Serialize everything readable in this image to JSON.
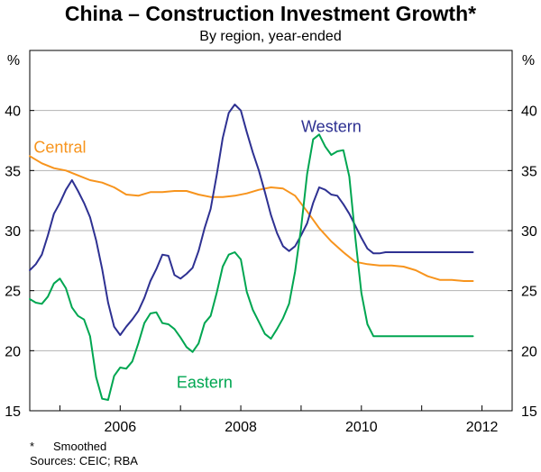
{
  "title": "China – Construction Investment Growth*",
  "subtitle": "By region, year-ended",
  "footnote": {
    "marker": "*",
    "text": "Smoothed"
  },
  "sources": "Sources: CEIC; RBA",
  "colors": {
    "Central": "#f7941d",
    "Western": "#2e3192",
    "Eastern": "#00a651",
    "axis": "#000000",
    "grid": "#b3b3b3"
  },
  "chart_data": {
    "type": "line",
    "title": "China – Construction Investment Growth*",
    "subtitle": "By region, year-ended",
    "ylabel": "%",
    "ylabel_right": "%",
    "xlim": [
      2004.5,
      2012.5
    ],
    "ylim": [
      15,
      45
    ],
    "yticks": [
      15,
      20,
      25,
      30,
      35,
      40
    ],
    "ytick_labels": [
      "15",
      "20",
      "25",
      "30",
      "35",
      "40"
    ],
    "ytick_labels_right": [
      "15",
      "20",
      "25",
      "30",
      "35",
      "40"
    ],
    "xtick_labels": [
      "2006",
      "2008",
      "2010",
      "2012"
    ],
    "xtick_label_positions": [
      2006,
      2008,
      2010,
      2012
    ],
    "year_boundaries": [
      2005,
      2006,
      2007,
      2008,
      2009,
      2010,
      2011,
      2012
    ],
    "series": [
      {
        "name": "Central",
        "label_text": "Central",
        "x": [
          2004.5,
          2004.7,
          2004.9,
          2005.1,
          2005.3,
          2005.5,
          2005.7,
          2005.9,
          2006.1,
          2006.3,
          2006.5,
          2006.7,
          2006.9,
          2007.1,
          2007.3,
          2007.5,
          2007.7,
          2007.9,
          2008.1,
          2008.3,
          2008.5,
          2008.7,
          2008.9,
          2009.1,
          2009.3,
          2009.5,
          2009.7,
          2009.9,
          2010.1,
          2010.3,
          2010.5,
          2010.7,
          2010.9,
          2011.1,
          2011.3,
          2011.5,
          2011.7,
          2011.85
        ],
        "values": [
          36.2,
          35.6,
          35.2,
          35.0,
          34.6,
          34.2,
          34.0,
          33.6,
          33.0,
          32.9,
          33.2,
          33.2,
          33.3,
          33.3,
          33.0,
          32.8,
          32.8,
          32.9,
          33.1,
          33.4,
          33.6,
          33.5,
          32.9,
          31.6,
          30.2,
          29.1,
          28.2,
          27.4,
          27.2,
          27.1,
          27.1,
          27.0,
          26.7,
          26.2,
          25.9,
          25.9,
          25.8,
          25.8
        ]
      },
      {
        "name": "Western",
        "label_text": "Western",
        "x": [
          2004.5,
          2004.6,
          2004.7,
          2004.8,
          2004.9,
          2005.0,
          2005.1,
          2005.2,
          2005.3,
          2005.4,
          2005.5,
          2005.6,
          2005.7,
          2005.8,
          2005.9,
          2006.0,
          2006.1,
          2006.2,
          2006.3,
          2006.4,
          2006.5,
          2006.6,
          2006.7,
          2006.8,
          2006.9,
          2007.0,
          2007.1,
          2007.2,
          2007.3,
          2007.4,
          2007.5,
          2007.6,
          2007.7,
          2007.8,
          2007.9,
          2008.0,
          2008.1,
          2008.2,
          2008.3,
          2008.4,
          2008.5,
          2008.6,
          2008.7,
          2008.8,
          2008.9,
          2009.0,
          2009.1,
          2009.2,
          2009.3,
          2009.4,
          2009.5,
          2009.6,
          2009.7,
          2009.8,
          2009.9,
          2010.0,
          2010.1,
          2010.2,
          2010.3,
          2010.4,
          2010.5,
          2010.6,
          2010.7,
          2010.8,
          2010.9,
          2011.0,
          2011.1,
          2011.2,
          2011.3,
          2011.4,
          2011.5,
          2011.6,
          2011.7,
          2011.8,
          2011.85
        ],
        "values": [
          26.7,
          27.2,
          28.0,
          29.6,
          31.4,
          32.3,
          33.4,
          34.2,
          33.3,
          32.3,
          31.1,
          29.2,
          26.8,
          24.0,
          22.0,
          21.3,
          22.0,
          22.6,
          23.3,
          24.4,
          25.8,
          26.8,
          28.0,
          27.9,
          26.3,
          26.0,
          26.4,
          26.9,
          28.3,
          30.2,
          31.8,
          34.6,
          37.7,
          39.8,
          40.5,
          40.0,
          38.2,
          36.5,
          35.0,
          33.2,
          31.3,
          29.8,
          28.7,
          28.3,
          28.7,
          29.6,
          30.6,
          32.3,
          33.6,
          33.4,
          33.0,
          32.9,
          32.2,
          31.4,
          30.4,
          29.4,
          28.5,
          28.1,
          28.1,
          28.2,
          28.2,
          28.2,
          28.2,
          28.2,
          28.2,
          28.2,
          28.2,
          28.2,
          28.2,
          28.2,
          28.2,
          28.2,
          28.2,
          28.2,
          28.2
        ],
        "label_note": "x axis in this series uses 2004.5 + 0.1 steps to end 2011.85; trailing values held near 28.2"
      },
      {
        "name": "Eastern",
        "label_text": "Eastern",
        "x": [
          2004.5,
          2004.6,
          2004.7,
          2004.8,
          2004.9,
          2005.0,
          2005.1,
          2005.2,
          2005.3,
          2005.4,
          2005.5,
          2005.6,
          2005.7,
          2005.8,
          2005.9,
          2006.0,
          2006.1,
          2006.2,
          2006.3,
          2006.4,
          2006.5,
          2006.6,
          2006.7,
          2006.8,
          2006.9,
          2007.0,
          2007.1,
          2007.2,
          2007.3,
          2007.4,
          2007.5,
          2007.6,
          2007.7,
          2007.8,
          2007.9,
          2008.0,
          2008.1,
          2008.2,
          2008.3,
          2008.4,
          2008.5,
          2008.6,
          2008.7,
          2008.8,
          2008.9,
          2009.0,
          2009.1,
          2009.2,
          2009.3,
          2009.4,
          2009.5,
          2009.6,
          2009.7,
          2009.8,
          2009.9,
          2010.0,
          2010.1,
          2010.2,
          2010.3,
          2010.4,
          2010.5,
          2010.6,
          2010.7,
          2010.8,
          2010.9,
          2011.0,
          2011.1,
          2011.2,
          2011.3,
          2011.4,
          2011.5,
          2011.6,
          2011.7,
          2011.8,
          2011.85
        ],
        "values": [
          24.3,
          24.0,
          23.9,
          24.5,
          25.6,
          26.0,
          25.2,
          23.6,
          22.9,
          22.6,
          21.2,
          17.8,
          16.0,
          15.9,
          17.9,
          18.6,
          18.5,
          19.1,
          20.6,
          22.3,
          23.1,
          23.2,
          22.3,
          22.2,
          21.8,
          21.1,
          20.3,
          19.9,
          20.6,
          22.3,
          22.9,
          24.8,
          27.0,
          28.0,
          28.2,
          27.6,
          24.9,
          23.4,
          22.4,
          21.4,
          21.0,
          21.8,
          22.7,
          23.9,
          26.6,
          30.2,
          34.7,
          37.6,
          38.0,
          37.0,
          36.3,
          36.6,
          36.7,
          34.5,
          29.4,
          24.8,
          22.2,
          21.2,
          21.2,
          21.2,
          21.2,
          21.2,
          21.2,
          21.2,
          21.2,
          21.2,
          21.2,
          21.2,
          21.2,
          21.2,
          21.2,
          21.2,
          21.2,
          21.2,
          21.2
        ]
      }
    ]
  }
}
